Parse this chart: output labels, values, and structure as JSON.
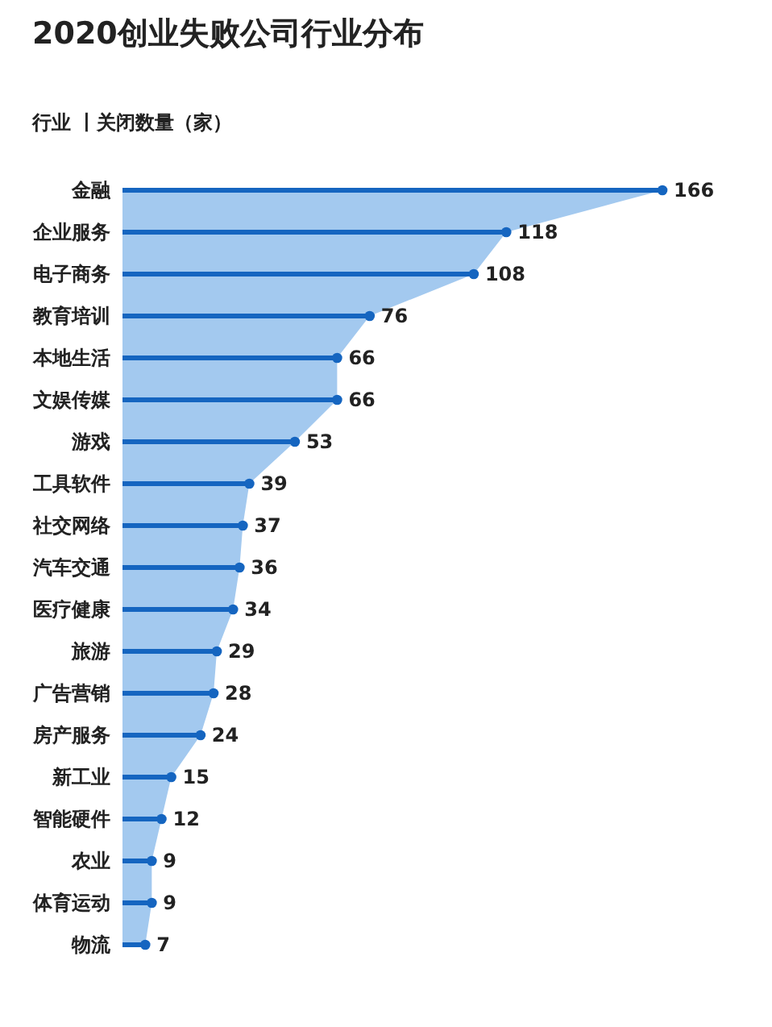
{
  "chart_data": {
    "type": "lollipop",
    "orientation": "horizontal",
    "title": "2020创业失败公司行业分布",
    "subtitle": "行业 丨关闭数量（家）",
    "categories": [
      "金融",
      "企业服务",
      "电子商务",
      "教育培训",
      "本地生活",
      "文娱传媒",
      "游戏",
      "工具软件",
      "社交网络",
      "汽车交通",
      "医疗健康",
      "旅游",
      "广告营销",
      "房产服务",
      "新工业",
      "智能硬件",
      "农业",
      "体育运动",
      "物流"
    ],
    "series": [
      {
        "color": "#1565c0",
        "values": [
          166,
          118,
          108,
          76,
          66,
          66,
          53,
          39,
          37,
          36,
          34,
          29,
          28,
          24,
          15,
          12,
          9,
          9,
          7
        ],
        "value_labels": [
          "166",
          "118",
          "108",
          "76",
          "66",
          "66",
          "53",
          "39",
          "37",
          "36",
          "34",
          "29",
          "28",
          "24",
          "15",
          "12",
          "9",
          "9",
          "7"
        ]
      },
      {
        "type": "area",
        "color": "#a3c9ef",
        "values": [
          166,
          118,
          108,
          76,
          66,
          66,
          53,
          39,
          37,
          36,
          34,
          29,
          28,
          24,
          15,
          12,
          9,
          9,
          7
        ]
      }
    ]
  }
}
